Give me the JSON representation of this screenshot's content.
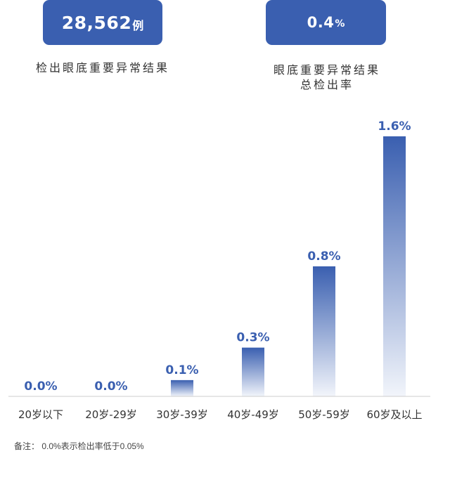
{
  "stats": [
    {
      "value": "28,562",
      "unit": "例",
      "label_lines": [
        "检出眼底重要异常结果"
      ]
    },
    {
      "value": "0.4",
      "unit": "%",
      "label_lines": [
        "眼底重要异常结果",
        "总检出率"
      ]
    }
  ],
  "chart_data": {
    "type": "bar",
    "categories": [
      "20岁以下",
      "20岁-29岁",
      "30岁-39岁",
      "40岁-49岁",
      "50岁-59岁",
      "60岁及以上"
    ],
    "values": [
      0.0,
      0.0,
      0.1,
      0.3,
      0.8,
      1.6
    ],
    "data_labels": [
      "0.0%",
      "0.0%",
      "0.1%",
      "0.3%",
      "0.8%",
      "1.6%"
    ],
    "ylim": [
      0,
      1.6
    ],
    "colors": {
      "bar_top": "#3a5fb0",
      "bar_bottom": "#f2f5fb",
      "label": "#3a5fb0",
      "axis": "#cccccc"
    }
  },
  "footnote": "备注： 0.0%表示检出率低于0.05%"
}
